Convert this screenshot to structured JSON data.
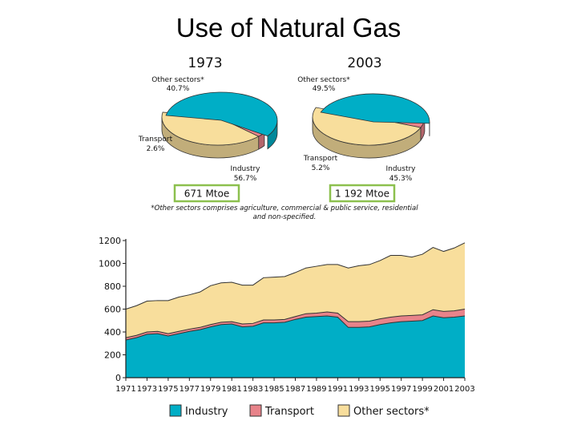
{
  "title": "Use of Natural Gas",
  "colors": {
    "industry": "#00aec6",
    "transport": "#e8838a",
    "other": "#f8de9c",
    "total_box": "#8cc04e"
  },
  "chart_data": [
    {
      "type": "pie",
      "title": "1973",
      "slices": [
        {
          "name": "Other sectors*",
          "label": "Other sectors*",
          "pct_text": "40.7%",
          "value": 40.7
        },
        {
          "name": "Transport",
          "label": "Transport",
          "pct_text": "2.6%",
          "value": 2.6
        },
        {
          "name": "Industry",
          "label": "Industry",
          "pct_text": "56.7%",
          "value": 56.7
        }
      ],
      "total": "671 Mtoe"
    },
    {
      "type": "pie",
      "title": "2003",
      "slices": [
        {
          "name": "Other sectors*",
          "label": "Other sectors*",
          "pct_text": "49.5%",
          "value": 49.5
        },
        {
          "name": "Transport",
          "label": "Transport",
          "pct_text": "5.2%",
          "value": 5.2
        },
        {
          "name": "Industry",
          "label": "Industry",
          "pct_text": "45.3%",
          "value": 45.3
        }
      ],
      "total": "1 192 Mtoe"
    },
    {
      "type": "area",
      "stacked": true,
      "ylim": [
        0,
        1200
      ],
      "yticks": [
        0,
        200,
        400,
        600,
        800,
        1000,
        1200
      ],
      "xlim": [
        1971,
        2003
      ],
      "xticks": [
        1971,
        1973,
        1975,
        1977,
        1979,
        1981,
        1983,
        1985,
        1987,
        1989,
        1991,
        1993,
        1995,
        1997,
        1999,
        2001,
        2003
      ],
      "x": [
        1971,
        1972,
        1973,
        1974,
        1975,
        1976,
        1977,
        1978,
        1979,
        1980,
        1981,
        1982,
        1983,
        1984,
        1985,
        1986,
        1987,
        1988,
        1989,
        1990,
        1991,
        1992,
        1993,
        1994,
        1995,
        1996,
        1997,
        1998,
        1999,
        2000,
        2001,
        2002,
        2003
      ],
      "series": [
        {
          "name": "Industry",
          "values": [
            330,
            350,
            380,
            385,
            365,
            385,
            405,
            420,
            445,
            465,
            470,
            445,
            450,
            480,
            480,
            485,
            510,
            530,
            535,
            540,
            530,
            440,
            440,
            445,
            465,
            480,
            490,
            495,
            500,
            540,
            525,
            530,
            540
          ]
        },
        {
          "name": "Transport",
          "values": [
            20,
            20,
            20,
            20,
            20,
            20,
            20,
            20,
            20,
            20,
            20,
            25,
            25,
            25,
            25,
            25,
            25,
            30,
            30,
            35,
            35,
            50,
            50,
            50,
            50,
            50,
            50,
            50,
            50,
            55,
            55,
            55,
            60
          ]
        },
        {
          "name": "Other sectors*",
          "values": [
            250,
            260,
            270,
            270,
            290,
            300,
            300,
            310,
            340,
            345,
            345,
            340,
            335,
            370,
            375,
            375,
            385,
            400,
            410,
            415,
            425,
            470,
            490,
            495,
            510,
            540,
            530,
            510,
            530,
            545,
            525,
            550,
            580
          ]
        }
      ],
      "legend": [
        "Industry",
        "Transport",
        "Other sectors*"
      ]
    }
  ],
  "footnote_line1": "*Other sectors comprises agriculture, commercial & public service, residential",
  "footnote_line2": "and non-specified."
}
